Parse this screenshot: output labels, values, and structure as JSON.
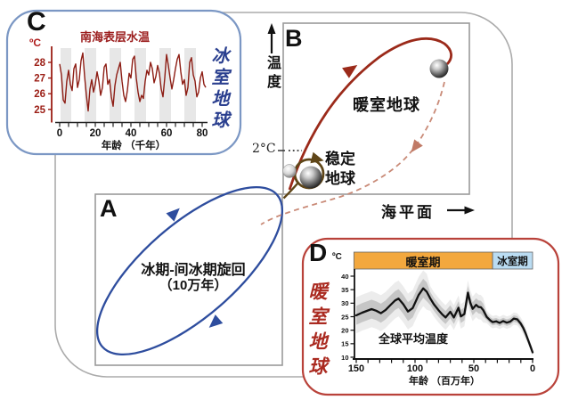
{
  "main": {
    "panel_b_label": "B",
    "panel_a_label": "A",
    "temp_axis_label": "温度",
    "sea_level_axis_label": "海平面",
    "two_degree_label": "2°C",
    "greenhouse_label": "暖室地球",
    "stable_earth_line1": "稳定",
    "stable_earth_line2": "地球",
    "glacial_cycle_line1": "冰期-间冰期旋回",
    "glacial_cycle_line2": "（10万年）",
    "colors": {
      "red_curve": "#9b2a1a",
      "dashed_return": "#c98a77",
      "blue_ellipse": "#2e4d9e",
      "stable_loop": "#5f4618",
      "frame_border": "#ababab",
      "panel_border": "#9a9a9a"
    }
  },
  "panel_c": {
    "label": "C",
    "title": "南海表层水温",
    "unit": "ºC",
    "side_text": "冰室地球",
    "xlabel": "年龄 （千年）",
    "border_color": "#7b97c4",
    "chart_data": {
      "type": "line",
      "title": "南海表层水温",
      "xlabel": "年龄（千年）",
      "ylabel": "ºC",
      "x_ticks": [
        0,
        20,
        40,
        60,
        80
      ],
      "y_ticks": [
        25,
        26,
        27,
        28
      ],
      "x_range": [
        0,
        82
      ],
      "y_range": [
        24,
        29
      ],
      "x_step_kyr": 1,
      "values": [
        27.9,
        27.2,
        25.6,
        25.4,
        26.8,
        27.5,
        26.6,
        26.2,
        27.6,
        27.9,
        26.4,
        26.9,
        28.1,
        28.6,
        27.1,
        25.9,
        24.9,
        26.3,
        26.9,
        26.1,
        26.6,
        27.4,
        26.8,
        25.9,
        26.4,
        27.7,
        27.9,
        26.6,
        26.9,
        25.8,
        25.2,
        26.5,
        27.2,
        27.6,
        28.0,
        26.8,
        25.9,
        25.5,
        26.2,
        27.3,
        27.0,
        28.2,
        28.4,
        27.0,
        26.1,
        25.5,
        25.9,
        25.7,
        26.8,
        27.5,
        27.2,
        28.0,
        27.6,
        26.7,
        27.1,
        27.8,
        27.3,
        26.3,
        25.8,
        27.0,
        28.5,
        27.8,
        27.0,
        26.3,
        26.9,
        27.6,
        28.2,
        28.5,
        27.4,
        26.6,
        26.9,
        25.9,
        26.4,
        28.0,
        28.3,
        27.2,
        26.8,
        25.8,
        26.1,
        27.0,
        27.4,
        26.6,
        26.4
      ],
      "shaded_bands_kyr": [
        [
          0.5,
          6.5
        ],
        [
          14,
          20.5
        ],
        [
          28,
          34.5
        ],
        [
          42,
          48.5
        ],
        [
          56,
          62.5
        ],
        [
          70,
          76.5
        ]
      ],
      "line_color": "#8d1d14",
      "band_color": "#e7e7e7",
      "axis_color": "#9b1d14",
      "grid": false
    }
  },
  "panel_d": {
    "label": "D",
    "unit": "ºC",
    "side_text": "暖室地球",
    "series_label": "全球平均温度",
    "xlabel": "年龄 （百万年）",
    "warm_period_label": "暖室期",
    "ice_period_label": "冰室期",
    "border_color": "#b9423a",
    "chart_data": {
      "type": "line",
      "series_name": "全球平均温度",
      "xlabel": "年龄（百万年）",
      "ylabel": "ºC",
      "x_ticks": [
        150,
        100,
        50,
        0
      ],
      "x_minor_tick_step": 10,
      "y_ticks": [
        10,
        15,
        20,
        25,
        30,
        35,
        40
      ],
      "x_range": [
        152,
        0
      ],
      "y_range": [
        10,
        43
      ],
      "warm_period_span_ma": [
        152,
        34
      ],
      "ice_period_span_ma": [
        34,
        0
      ],
      "warm_color": "#f3a83e",
      "ice_color": "#badcf2",
      "line_color": "#111111",
      "uncertainty_color": "#8a8a8a",
      "points": [
        [
          150,
          25.5
        ],
        [
          145,
          26.5
        ],
        [
          140,
          27.3
        ],
        [
          137,
          27.8
        ],
        [
          133,
          27.2
        ],
        [
          129,
          26.3
        ],
        [
          125,
          27.5
        ],
        [
          121,
          29.3
        ],
        [
          117,
          31.0
        ],
        [
          114,
          31.7
        ],
        [
          110,
          29.6
        ],
        [
          106,
          26.9
        ],
        [
          102,
          28.2
        ],
        [
          97,
          33.0
        ],
        [
          93,
          35.5
        ],
        [
          90,
          34.2
        ],
        [
          87,
          31.7
        ],
        [
          84,
          29.6
        ],
        [
          80,
          27.4
        ],
        [
          77,
          25.9
        ],
        [
          74,
          24.7
        ],
        [
          70,
          26.8
        ],
        [
          67,
          24.7
        ],
        [
          63,
          28.3
        ],
        [
          61,
          25.1
        ],
        [
          58,
          26.0
        ],
        [
          55,
          33.9
        ],
        [
          53,
          30.2
        ],
        [
          51,
          27.9
        ],
        [
          48,
          29.4
        ],
        [
          46,
          28.6
        ],
        [
          44,
          28.5
        ],
        [
          42,
          27.4
        ],
        [
          39,
          24.9
        ],
        [
          36,
          23.6
        ],
        [
          34,
          23.0
        ],
        [
          31,
          23.3
        ],
        [
          28,
          22.7
        ],
        [
          25,
          23.4
        ],
        [
          22,
          22.8
        ],
        [
          19,
          23.2
        ],
        [
          16,
          24.3
        ],
        [
          13,
          24.0
        ],
        [
          10,
          22.4
        ],
        [
          8,
          20.9
        ],
        [
          6,
          18.9
        ],
        [
          4,
          16.6
        ],
        [
          2,
          14.2
        ],
        [
          0,
          11.8
        ]
      ],
      "grid": false
    }
  }
}
